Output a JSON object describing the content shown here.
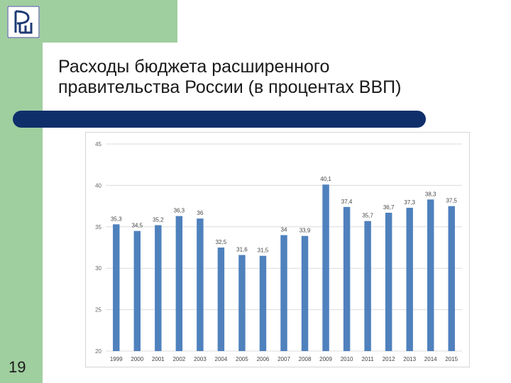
{
  "slide": {
    "title_line1": "Расходы бюджета расширенного",
    "title_line2": "правительства России (в процентах ВВП)",
    "page_number": "19",
    "logo_text": "ВШЭ",
    "colors": {
      "band": "#9fce9f",
      "title_bar": "#0f2f6b",
      "bar": "#4f81bd"
    }
  },
  "chart_data": {
    "type": "bar",
    "categories": [
      "1999",
      "2000",
      "2001",
      "2002",
      "2003",
      "2004",
      "2005",
      "2006",
      "2007",
      "2008",
      "2009",
      "2010",
      "2011",
      "2012",
      "2013",
      "2014",
      "2015"
    ],
    "values": [
      35.3,
      34.5,
      35.2,
      36.3,
      36,
      32.5,
      31.6,
      31.5,
      34,
      33.9,
      40.1,
      37.4,
      35.7,
      36.7,
      37.3,
      38.3,
      37.5
    ],
    "value_labels": [
      "35,3",
      "34,5",
      "35,2",
      "36,3",
      "36",
      "32,5",
      "31,6",
      "31,5",
      "34",
      "33,9",
      "40,1",
      "37,4",
      "35,7",
      "36,7",
      "37,3",
      "38,3",
      "37,5"
    ],
    "ylim": [
      20,
      45
    ],
    "yticks": [
      20,
      25,
      30,
      35,
      40,
      45
    ],
    "grid": true,
    "color": "#4f81bd"
  }
}
